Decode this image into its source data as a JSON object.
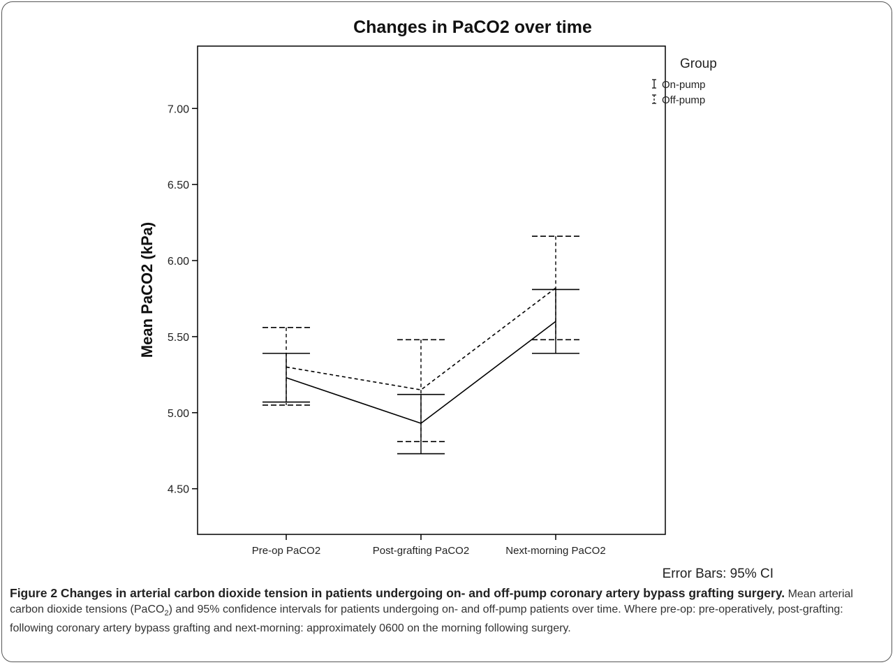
{
  "chart_data": {
    "type": "line",
    "title": "Changes in PaCO2 over time",
    "xlabel": "",
    "ylabel": "Mean PaCO2 (kPa)",
    "categories": [
      "Pre-op PaCO2",
      "Post-grafting PaCO2",
      "Next-morning PaCO2"
    ],
    "yticks": [
      "4.50",
      "5.00",
      "5.50",
      "6.00",
      "6.50",
      "7.00"
    ],
    "ylim": [
      4.2,
      7.41
    ],
    "grid": false,
    "legend": {
      "title": "Group",
      "position": "top-right, outside plot",
      "entries": [
        "On-pump",
        "Off-pump"
      ]
    },
    "series": [
      {
        "name": "On-pump",
        "line_style": "solid",
        "values": [
          5.23,
          4.93,
          5.6
        ],
        "ci_lower": [
          5.07,
          4.73,
          5.39
        ],
        "ci_upper": [
          5.39,
          5.12,
          5.81
        ]
      },
      {
        "name": "Off-pump",
        "line_style": "dashed",
        "values": [
          5.3,
          5.15,
          5.82
        ],
        "ci_lower": [
          5.05,
          4.81,
          5.48
        ],
        "ci_upper": [
          5.56,
          5.48,
          6.16
        ]
      }
    ],
    "footnote": "Error Bars: 95% CI"
  },
  "caption": {
    "title": "Figure 2 Changes in arterial carbon dioxide tension in patients undergoing on- and off-pump coronary artery bypass grafting surgery.",
    "text_before_sub": " Mean arterial carbon dioxide tensions (PaCO",
    "subscript": "2",
    "text_after_sub": ") and 95% confidence intervals for patients undergoing on- and off-pump patients over time. Where pre-op: pre-operatively, post-grafting: following coronary artery bypass grafting and next-morning: approximately 0600 on the morning following surgery."
  }
}
